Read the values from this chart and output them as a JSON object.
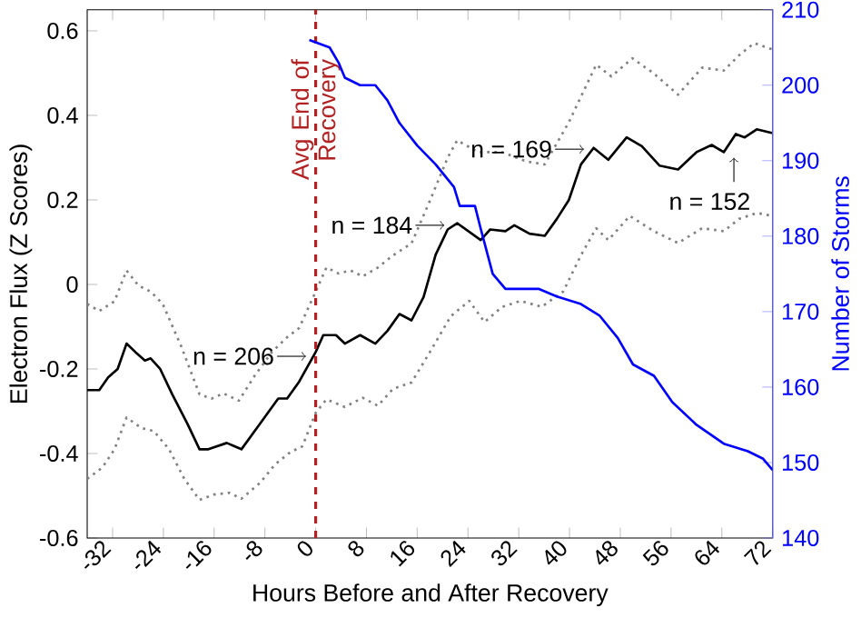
{
  "chart_data": {
    "type": "line",
    "xlabel": "Hours Before and After Recovery",
    "ylabel": "Electron Flux (Z Scores)",
    "y2label": "Number of Storms",
    "xlim": [
      -36,
      72
    ],
    "ylim": [
      -0.6,
      0.65
    ],
    "y2lim": [
      140,
      210
    ],
    "xticks": [
      -32,
      -24,
      -16,
      -8,
      0,
      8,
      16,
      24,
      32,
      40,
      48,
      56,
      64,
      72
    ],
    "yticks": [
      -0.6,
      -0.4,
      -0.2,
      0,
      0.2,
      0.4,
      0.6
    ],
    "y2ticks": [
      140,
      150,
      160,
      170,
      180,
      190,
      200,
      210
    ],
    "marker": "none",
    "series": [
      {
        "color": "#000000",
        "line_style": "solid",
        "x": [
          -36,
          -34.1,
          -32.7,
          -31.2,
          -29.8,
          -28.4,
          -26.9,
          -26,
          -24.5,
          -22.6,
          -20.2,
          -18.3,
          -16.9,
          -14,
          -11.7,
          -8.8,
          -5.9,
          -4.5,
          -2.6,
          0,
          1.2,
          3.2,
          4.6,
          7,
          9.4,
          11.3,
          13.2,
          15.1,
          17,
          18.9,
          20.8,
          22.3,
          26,
          27.5,
          29.9,
          31.3,
          33.7,
          36.1,
          38,
          39.9,
          41.8,
          43.8,
          46.1,
          49,
          51.4,
          54.2,
          57.1,
          60,
          62.4,
          64.3,
          66.2,
          67.6,
          69.5,
          72
        ],
        "values": [
          -0.25,
          -0.25,
          -0.22,
          -0.2,
          -0.14,
          -0.16,
          -0.18,
          -0.175,
          -0.2,
          -0.26,
          -0.33,
          -0.39,
          -0.39,
          -0.375,
          -0.39,
          -0.33,
          -0.27,
          -0.27,
          -0.23,
          -0.16,
          -0.12,
          -0.12,
          -0.14,
          -0.12,
          -0.14,
          -0.11,
          -0.07,
          -0.085,
          -0.03,
          0.07,
          0.13,
          0.145,
          0.105,
          0.13,
          0.126,
          0.14,
          0.12,
          0.115,
          0.155,
          0.2,
          0.284,
          0.323,
          0.295,
          0.348,
          0.327,
          0.281,
          0.272,
          0.313,
          0.33,
          0.313,
          0.356,
          0.348,
          0.367,
          0.358
        ]
      },
      {
        "color": "#808080",
        "line_style": "dotted",
        "x": [
          -36,
          -34.1,
          -31.7,
          -29.8,
          -27.9,
          -26,
          -24.1,
          -21.2,
          -18.3,
          -16.4,
          -14.5,
          -12.1,
          -9.7,
          -6.9,
          -4.5,
          -2.6,
          0,
          1.7,
          3.6,
          5.5,
          7.4,
          9.8,
          12.2,
          15.1,
          18,
          20.8,
          22.3,
          25.6,
          29.4,
          33.2,
          36.1,
          39.9,
          44.2,
          46.6,
          49.9,
          53.3,
          57.1,
          60.9,
          64.3,
          66.7,
          69.1,
          72
        ],
        "values": [
          -0.046,
          -0.063,
          -0.04,
          0.033,
          -0.003,
          -0.017,
          -0.046,
          -0.146,
          -0.26,
          -0.27,
          -0.258,
          -0.275,
          -0.218,
          -0.16,
          -0.125,
          -0.103,
          -0.017,
          0.04,
          0.026,
          0.033,
          0.019,
          0.04,
          0.069,
          0.097,
          0.198,
          0.3,
          0.341,
          0.313,
          0.313,
          0.291,
          0.284,
          0.384,
          0.52,
          0.492,
          0.535,
          0.499,
          0.449,
          0.513,
          0.506,
          0.542,
          0.571,
          0.556
        ]
      },
      {
        "color": "#808080",
        "line_style": "dotted",
        "x": [
          -36,
          -33.6,
          -31.7,
          -29.8,
          -27.4,
          -25.5,
          -23.1,
          -20.7,
          -18.3,
          -16,
          -13.6,
          -11.7,
          -8.8,
          -6.4,
          -4,
          -2.1,
          0,
          1.7,
          4.6,
          7.4,
          9.8,
          12.2,
          15.1,
          18,
          21.3,
          24.2,
          26.6,
          29.4,
          32.3,
          35.6,
          39,
          41.8,
          44.2,
          46.1,
          49.5,
          53.3,
          57.1,
          60.9,
          64.3,
          66.7,
          69.5,
          72
        ],
        "values": [
          -0.46,
          -0.433,
          -0.39,
          -0.315,
          -0.34,
          -0.347,
          -0.39,
          -0.46,
          -0.51,
          -0.497,
          -0.493,
          -0.507,
          -0.47,
          -0.426,
          -0.397,
          -0.383,
          -0.304,
          -0.272,
          -0.29,
          -0.268,
          -0.287,
          -0.247,
          -0.232,
          -0.16,
          -0.075,
          -0.039,
          -0.089,
          -0.053,
          -0.039,
          -0.053,
          -0.017,
          0.069,
          0.133,
          0.105,
          0.162,
          0.126,
          0.098,
          0.133,
          0.126,
          0.155,
          0.169,
          0.162
        ]
      },
      {
        "color": "#0000ff",
        "line_style": "solid",
        "axis": "y2",
        "x": [
          -1,
          2.2,
          3.6,
          4.6,
          7,
          9.4,
          11.3,
          13.2,
          16,
          18.9,
          21.8,
          22.7,
          25.1,
          26,
          27.9,
          29.9,
          35.2,
          38,
          41.8,
          44.7,
          47.6,
          50,
          53.3,
          56.2,
          60,
          64.3,
          68.1,
          70.5,
          72
        ],
        "values": [
          206,
          205,
          203,
          201,
          200,
          200,
          198,
          195,
          192,
          189.5,
          186.5,
          184,
          184,
          181,
          175,
          173,
          173,
          172,
          171,
          169.5,
          166.5,
          163,
          161.5,
          158,
          155,
          152.5,
          151.5,
          150.5,
          149
        ]
      }
    ],
    "ref_lines": [
      {
        "axis": "x",
        "value": 0,
        "label": "Avg End of Recovery",
        "color": "#b22222",
        "line_style": "dashed"
      }
    ],
    "annotations": [
      {
        "text": "n = 206",
        "x": -1.5,
        "y": -0.17
      },
      {
        "text": "n = 184",
        "x": 20.3,
        "y": 0.14
      },
      {
        "text": "n = 169",
        "x": 42.3,
        "y": 0.32
      },
      {
        "text": "n = 152",
        "x": 65.9,
        "y": 0.3
      }
    ]
  }
}
